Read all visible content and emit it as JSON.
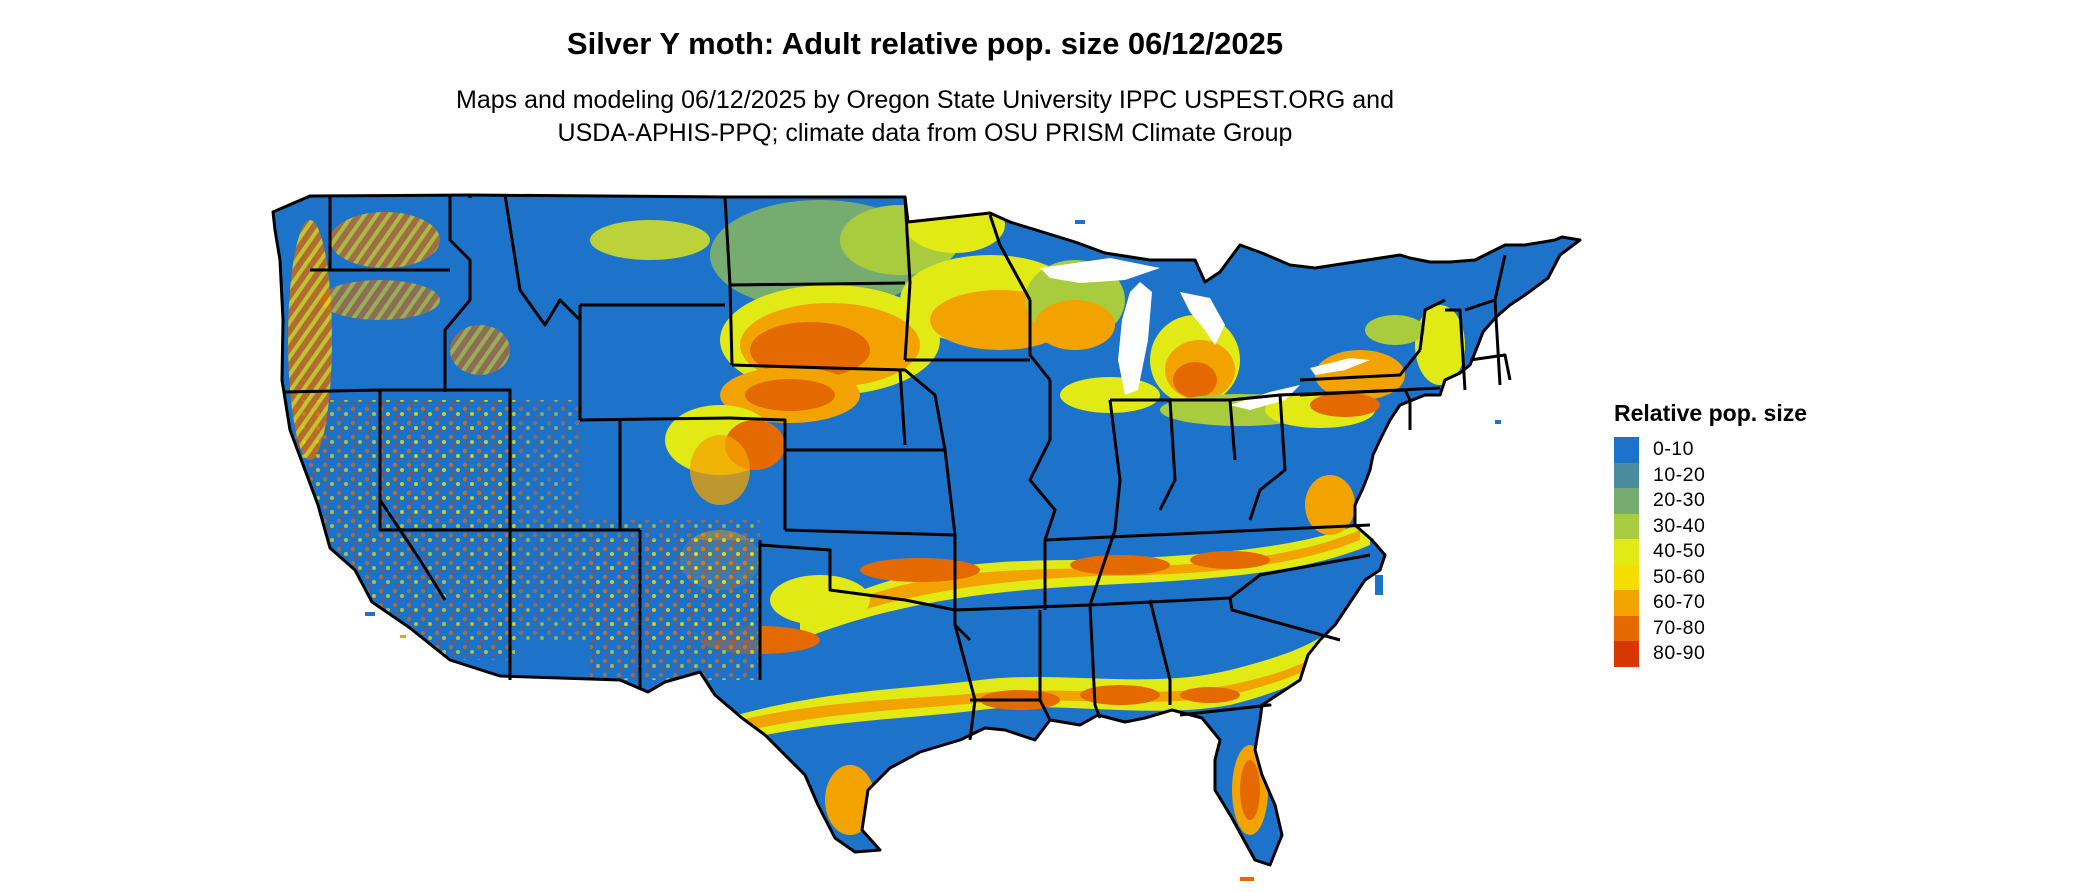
{
  "title": "Silver Y moth: Adult relative pop. size 06/12/2025",
  "subtitle_lines": [
    "Maps and modeling 06/12/2025 by Oregon State University IPPC USPEST.ORG and",
    "USDA-APHIS-PPQ; climate data from OSU PRISM Climate Group"
  ],
  "legend": {
    "title": "Relative pop. size",
    "items": [
      {
        "label": "0-10",
        "color": "#1c73c9"
      },
      {
        "label": "10-20",
        "color": "#4a8c9e"
      },
      {
        "label": "20-30",
        "color": "#77ac70"
      },
      {
        "label": "30-40",
        "color": "#a9cb3e"
      },
      {
        "label": "40-50",
        "color": "#e2ea16"
      },
      {
        "label": "50-60",
        "color": "#f4de00"
      },
      {
        "label": "60-70",
        "color": "#f3a300"
      },
      {
        "label": "70-80",
        "color": "#e46a00"
      },
      {
        "label": "80-90",
        "color": "#d93700"
      }
    ]
  }
}
